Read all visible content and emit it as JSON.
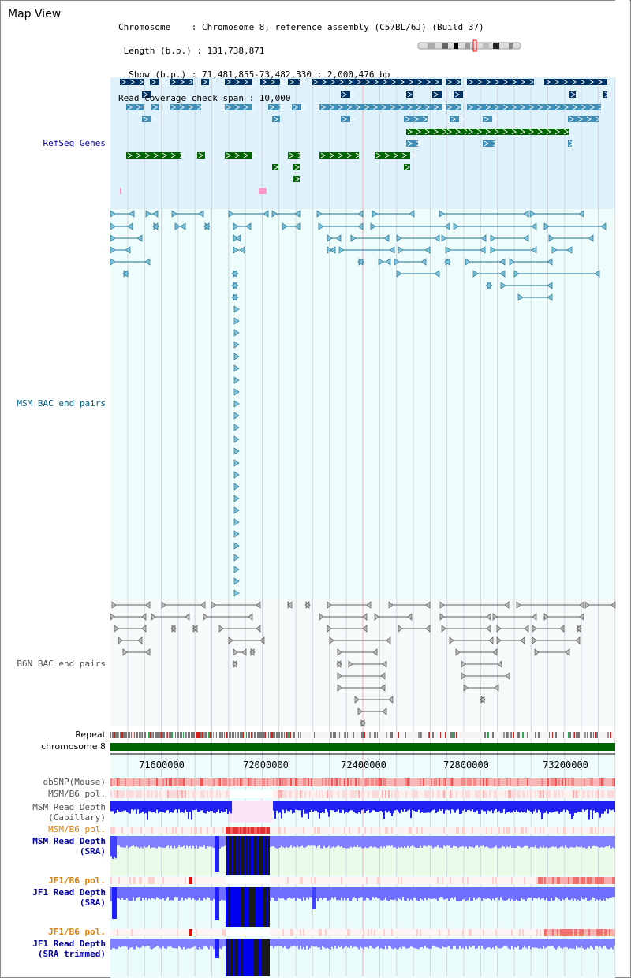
{
  "app": {
    "title": "Map View"
  },
  "info": {
    "chromosome_line": "Chromosome    : Chromosome 8, reference assembly (C57BL/6J) (Build 37)",
    "length_line": " Length (b.p.) : 131,738,871",
    "show_line": "  Show (b.p.) : 71,481,855-73,482,330 : 2,000,476 bp",
    "coverage_line": "Read coverage check span : 10,000"
  },
  "tracks": {
    "refseq": "RefSeq Genes",
    "msm_bac": "MSM BAC end pairs",
    "b6n_bac": "B6N BAC end pairs",
    "repeat": "Repeat",
    "chromosome": "chromosome 8",
    "dbsnp": "dbSNP(Mouse)",
    "msm_b6_pol_1": "MSM/B6 pol.",
    "msm_read_depth_cap_1": "MSM Read Depth",
    "msm_read_depth_cap_2": "(Capillary)",
    "msm_b6_pol_2": "MSM/B6 pol.",
    "msm_read_depth_sra_1": "MSM Read Depth",
    "msm_read_depth_sra_2": "(SRA)",
    "jf1_b6_pol_1": "JF1/B6 pol.",
    "jf1_read_depth_sra_1": "JF1 Read Depth",
    "jf1_read_depth_sra_2": "(SRA)",
    "jf1_b6_pol_2": "JF1/B6 pol.",
    "jf1_read_depth_trim_1": "JF1 Read Depth",
    "jf1_read_depth_trim_2": "(SRA trimmed)"
  },
  "axis": {
    "ticks": [
      "71600000",
      "72000000",
      "72400000",
      "72800000",
      "73200000"
    ]
  },
  "colors": {
    "refseq_bg": "#dff1fb",
    "bac_bg": "#eefcfc",
    "gene_dark": "#003466",
    "gene_mid": "#3f8fb6",
    "gene_green": "#006400",
    "msm_pair": "#1e6e8c",
    "b6n_pair": "#606060",
    "chromosome_bar": "#006400",
    "depth_blue": "#0000ff",
    "depth_light": "#7f7fff",
    "snp_red": "#ee3333"
  }
}
